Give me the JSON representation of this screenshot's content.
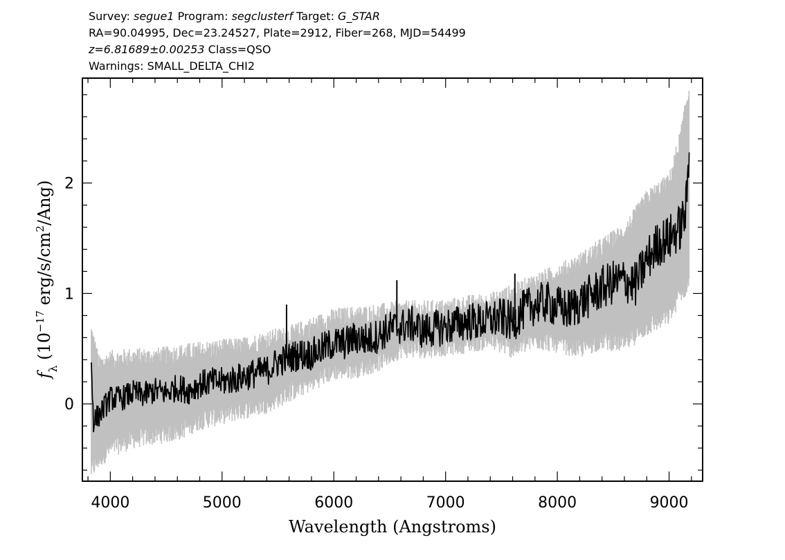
{
  "header": {
    "survey_label": "Survey:",
    "survey": "segue1",
    "program_label": "Program:",
    "program": "segclusterf",
    "target_label": "Target:",
    "target": "G_STAR",
    "line2": "RA=90.04995, Dec=23.24527, Plate=2912, Fiber=268, MJD=54499",
    "redshift": "z=6.81689±0.00253",
    "class": "Class=QSO",
    "warnings": "Warnings: SMALL_DELTA_CHI2"
  },
  "chart_data": {
    "type": "line",
    "xlabel": "Wavelength (Angstroms)",
    "ylabel": "f_λ (10^-17 erg/s/cm^2/Ang)",
    "xlim": [
      3750,
      9300
    ],
    "ylim": [
      -0.7,
      2.95
    ],
    "xticks": [
      4000,
      5000,
      6000,
      7000,
      8000,
      9000
    ],
    "yticks": [
      0,
      1,
      2
    ],
    "grid": false,
    "colors": {
      "flux": "#000000",
      "error_band": "#c0c0c0"
    },
    "series": [
      {
        "style": "black-flux",
        "x": [
          3830,
          3850,
          3900,
          4000,
          4100,
          4200,
          4300,
          4400,
          4500,
          4600,
          4700,
          4800,
          4900,
          5000,
          5100,
          5200,
          5300,
          5400,
          5500,
          5577,
          5600,
          5700,
          5800,
          5900,
          6000,
          6100,
          6200,
          6300,
          6400,
          6500,
          6564,
          6600,
          6700,
          6800,
          6900,
          7000,
          7100,
          7200,
          7300,
          7400,
          7500,
          7600,
          7620,
          7700,
          7800,
          7900,
          8000,
          8100,
          8200,
          8300,
          8400,
          8500,
          8600,
          8700,
          8800,
          8900,
          9000,
          9100,
          9150,
          9180
        ],
        "y": [
          0.38,
          -0.15,
          -0.1,
          0.05,
          0.05,
          0.1,
          0.08,
          0.12,
          0.1,
          0.15,
          0.12,
          0.18,
          0.2,
          0.2,
          0.22,
          0.25,
          0.28,
          0.3,
          0.38,
          0.9,
          0.42,
          0.45,
          0.45,
          0.5,
          0.55,
          0.55,
          0.6,
          0.58,
          0.62,
          0.68,
          1.12,
          0.7,
          0.72,
          0.66,
          0.68,
          0.7,
          0.72,
          0.75,
          0.74,
          0.76,
          0.78,
          0.74,
          1.18,
          0.85,
          0.9,
          0.92,
          0.88,
          0.85,
          0.92,
          0.98,
          1.05,
          1.1,
          1.12,
          1.08,
          1.3,
          1.45,
          1.5,
          1.6,
          1.75,
          2.25
        ]
      },
      {
        "style": "gray-error-band",
        "x": [
          3830,
          3900,
          4000,
          4200,
          4400,
          4600,
          4800,
          5000,
          5200,
          5400,
          5600,
          5800,
          6000,
          6200,
          6400,
          6600,
          6800,
          7000,
          7200,
          7400,
          7600,
          7800,
          8000,
          8200,
          8400,
          8600,
          8800,
          9000,
          9100,
          9180
        ],
        "upper": [
          0.65,
          0.35,
          0.4,
          0.42,
          0.42,
          0.45,
          0.48,
          0.5,
          0.52,
          0.58,
          0.62,
          0.7,
          0.78,
          0.8,
          0.82,
          0.85,
          0.85,
          0.86,
          0.9,
          0.92,
          1.0,
          1.1,
          1.18,
          1.28,
          1.42,
          1.55,
          1.85,
          2.0,
          2.4,
          2.85
        ],
        "lower": [
          -0.6,
          -0.5,
          -0.4,
          -0.32,
          -0.28,
          -0.25,
          -0.15,
          -0.1,
          -0.05,
          0.0,
          0.1,
          0.2,
          0.3,
          0.32,
          0.38,
          0.5,
          0.5,
          0.52,
          0.55,
          0.58,
          0.5,
          0.58,
          0.55,
          0.5,
          0.58,
          0.55,
          0.7,
          0.8,
          1.0,
          1.1
        ]
      }
    ]
  }
}
